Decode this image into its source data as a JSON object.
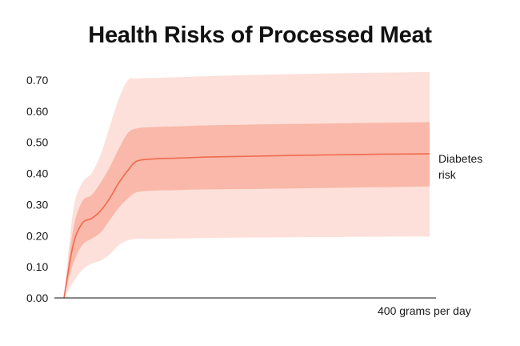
{
  "chart_data": {
    "type": "line",
    "title": "Health Risks of Processed Meat",
    "xlabel": "400 grams per day",
    "ylabel": "",
    "ylim": [
      0,
      0.7
    ],
    "xlim": [
      0,
      400
    ],
    "yticks": [
      "0.00",
      "0.10",
      "0.20",
      "0.30",
      "0.40",
      "0.50",
      "0.60",
      "0.70"
    ],
    "grid": false,
    "colors": {
      "line": "#f06a4f",
      "inner_band": "#f9b8a9",
      "outer_band": "#fde0da"
    },
    "series": [
      {
        "name": "Diabetes risk",
        "label_lines": [
          "Diabetes",
          "risk"
        ],
        "x": [
          0,
          10,
          20,
          30,
          40,
          50,
          60,
          70,
          80,
          100,
          120,
          140,
          160,
          200,
          250,
          300,
          350,
          400
        ],
        "y": [
          0,
          0.17,
          0.24,
          0.255,
          0.28,
          0.32,
          0.37,
          0.41,
          0.44,
          0.447,
          0.449,
          0.451,
          0.453,
          0.455,
          0.458,
          0.46,
          0.462,
          0.463
        ],
        "inner_lower": [
          0,
          0.11,
          0.17,
          0.19,
          0.21,
          0.25,
          0.29,
          0.32,
          0.34,
          0.345,
          0.346,
          0.348,
          0.349,
          0.35,
          0.352,
          0.354,
          0.356,
          0.358
        ],
        "inner_upper": [
          0,
          0.22,
          0.31,
          0.33,
          0.37,
          0.42,
          0.48,
          0.53,
          0.545,
          0.549,
          0.551,
          0.553,
          0.555,
          0.557,
          0.559,
          0.561,
          0.563,
          0.565
        ],
        "outer_lower": [
          0,
          0.05,
          0.09,
          0.11,
          0.12,
          0.14,
          0.17,
          0.185,
          0.19,
          0.19,
          0.191,
          0.192,
          0.193,
          0.194,
          0.195,
          0.196,
          0.197,
          0.197
        ],
        "outer_upper": [
          0,
          0.28,
          0.37,
          0.4,
          0.46,
          0.55,
          0.64,
          0.7,
          0.705,
          0.707,
          0.709,
          0.711,
          0.713,
          0.716,
          0.719,
          0.722,
          0.724,
          0.726
        ]
      }
    ]
  }
}
